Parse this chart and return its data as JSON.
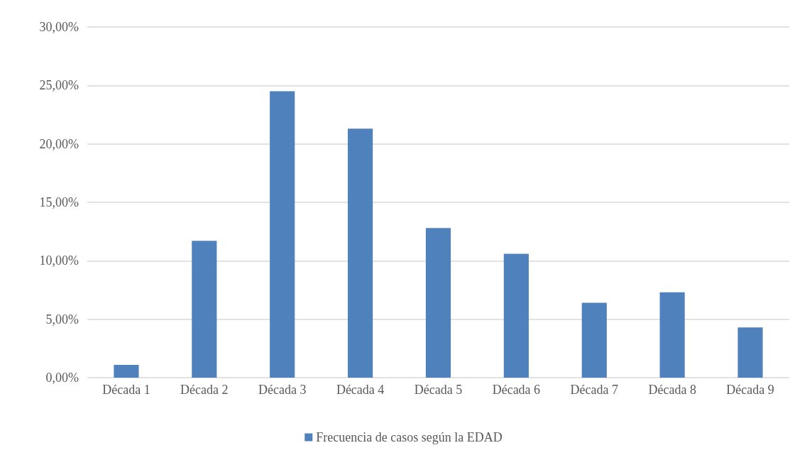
{
  "chart_data": {
    "type": "bar",
    "categories": [
      "Década 1",
      "Década 2",
      "Década 3",
      "Década 4",
      "Década 5",
      "Década 6",
      "Década 7",
      "Década 8",
      "Década 9"
    ],
    "series": [
      {
        "name": "Frecuencia de casos según la EDAD",
        "color": "#4f81bd",
        "values": [
          1.1,
          11.7,
          24.5,
          21.3,
          12.8,
          10.6,
          6.4,
          7.3,
          4.3
        ]
      }
    ],
    "ylim": [
      0,
      30
    ],
    "yticks": [
      {
        "value": 0,
        "label": "0,00%"
      },
      {
        "value": 5,
        "label": "5,00%"
      },
      {
        "value": 10,
        "label": "10,00%"
      },
      {
        "value": 15,
        "label": "15,00%"
      },
      {
        "value": 20,
        "label": "20,00%"
      },
      {
        "value": 25,
        "label": "25,00%"
      },
      {
        "value": 30,
        "label": "30,00%"
      }
    ],
    "grid": "y",
    "legend": "bottom"
  }
}
